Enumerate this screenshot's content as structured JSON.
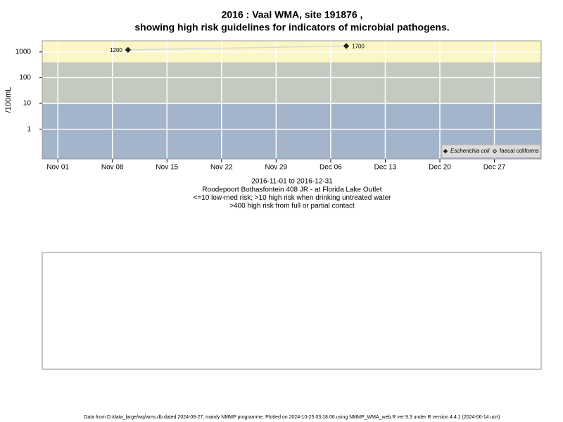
{
  "chart_data": {
    "type": "line",
    "title": "2016 : Vaal WMA, site 191876 ,",
    "subtitle": "showing high risk guidelines for indicators of microbial pathogens.",
    "y_label": "/100mL",
    "x_label_lines": [
      "2016-11-01 to 2016-12-31",
      "Roodepoort Bothasfontein 408 JR - at Florida Lake Outlet",
      "<=10 low-med risk; >10 high risk when drinking untreated water",
      ">400 high risk from full or partial contact"
    ],
    "footer": "Data from D:/data_large/wq/wms.db dated 2024-08-27, mainly NMMP programme. Plotted on 2024-10-25 03:18:06 using NMMP_WMA_web.R ver 9.3 under R version 4.4.1 (2024-06-14 ucrt)",
    "x": [
      "2016-11-10",
      "2016-12-08"
    ],
    "series": [
      {
        "name": "Escherichia coli",
        "color": "#222222",
        "values": [
          1200,
          1700
        ],
        "value_labels": [
          "1200",
          "1700"
        ]
      },
      {
        "name": "faecal coliforms",
        "color": "#222222",
        "values": [
          null,
          null
        ]
      }
    ],
    "log_scale": true,
    "ylim": [
      0.07,
      2700
    ],
    "yticks": [
      1,
      10,
      100,
      1000
    ],
    "xlim": [
      "2016-10-30",
      "2017-01-02"
    ],
    "xticks": [
      {
        "value": "2016-11-01",
        "label": "Nov 01"
      },
      {
        "value": "2016-11-08",
        "label": "Nov 08"
      },
      {
        "value": "2016-11-15",
        "label": "Nov 15"
      },
      {
        "value": "2016-11-22",
        "label": "Nov 22"
      },
      {
        "value": "2016-11-29",
        "label": "Nov 29"
      },
      {
        "value": "2016-12-06",
        "label": "Dec 06"
      },
      {
        "value": "2016-12-13",
        "label": "Dec 13"
      },
      {
        "value": "2016-12-20",
        "label": "Dec 20"
      },
      {
        "value": "2016-12-27",
        "label": "Dec 27"
      }
    ],
    "bands": [
      {
        "from": 0.07,
        "to": 10,
        "color": "#a3b4cb"
      },
      {
        "from": 10,
        "to": 400,
        "color": "#c3cbc0"
      },
      {
        "from": 400,
        "to": 2700,
        "color": "#fcf6c6"
      }
    ],
    "grid": true,
    "legend_position": "bottom-right"
  }
}
